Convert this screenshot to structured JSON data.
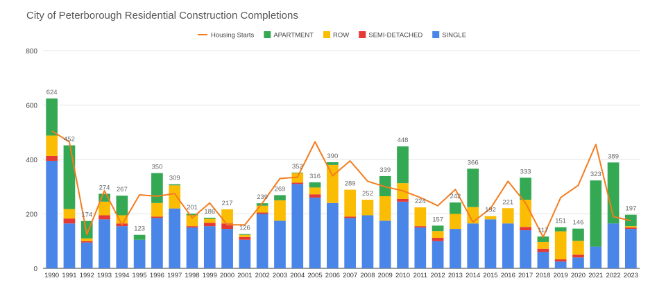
{
  "chart_data": {
    "type": "bar",
    "title": "City of Peterborough Residential Construction Completions",
    "categories": [
      "1990",
      "1991",
      "1992",
      "1993",
      "1994",
      "1995",
      "1996",
      "1997",
      "1998",
      "1999",
      "2000",
      "2001",
      "2002",
      "2003",
      "2004",
      "2005",
      "2006",
      "2007",
      "2008",
      "2009",
      "2010",
      "2011",
      "2012",
      "2013",
      "2014",
      "2015",
      "2016",
      "2017",
      "2018",
      "2019",
      "2020",
      "2021",
      "2022",
      "2023"
    ],
    "stacked": true,
    "ylim": [
      0,
      800
    ],
    "yticks": [
      "0",
      "200",
      "400",
      "600",
      "800"
    ],
    "grid": true,
    "legend_position": "top",
    "totals": [
      "624",
      "452",
      "174",
      "274",
      "267",
      "123",
      "350",
      "309",
      "201",
      "186",
      "217",
      "126",
      "239",
      "269",
      "352",
      "316",
      "390",
      "289",
      "252",
      "339",
      "448",
      "224",
      "157",
      "242",
      "366",
      "192",
      "221",
      "333",
      "117",
      "151",
      "146",
      "323",
      "389",
      "197"
    ],
    "series": [
      {
        "name": "SINGLE",
        "color": "#4a86e8",
        "values": [
          395,
          165,
          95,
          180,
          155,
          105,
          185,
          220,
          150,
          155,
          145,
          105,
          200,
          175,
          310,
          260,
          240,
          185,
          195,
          175,
          245,
          150,
          100,
          145,
          165,
          180,
          165,
          140,
          60,
          25,
          40,
          80,
          165,
          145
        ]
      },
      {
        "name": "SEMI-DETACHED",
        "color": "#e53935",
        "values": [
          18,
          18,
          5,
          15,
          10,
          0,
          5,
          0,
          5,
          12,
          20,
          10,
          5,
          0,
          5,
          12,
          0,
          5,
          0,
          0,
          10,
          5,
          12,
          0,
          0,
          0,
          0,
          12,
          12,
          8,
          10,
          0,
          0,
          5
        ]
      },
      {
        "name": "ROW",
        "color": "#fbbc04",
        "values": [
          75,
          35,
          10,
          50,
          30,
          0,
          50,
          85,
          40,
          15,
          52,
          8,
          25,
          75,
          35,
          25,
          140,
          99,
          57,
          90,
          58,
          69,
          25,
          55,
          60,
          12,
          56,
          100,
          25,
          103,
          51,
          0,
          0,
          5
        ]
      },
      {
        "name": "APARTMENT",
        "color": "#34a853",
        "values": [
          136,
          234,
          64,
          29,
          72,
          18,
          110,
          4,
          6,
          4,
          0,
          3,
          9,
          19,
          2,
          19,
          10,
          0,
          0,
          74,
          135,
          0,
          20,
          42,
          141,
          0,
          0,
          81,
          20,
          15,
          45,
          243,
          224,
          42
        ]
      }
    ],
    "line": {
      "name": "Housing Starts",
      "color": "#f57c1f",
      "values": [
        505,
        465,
        125,
        285,
        160,
        270,
        265,
        275,
        185,
        240,
        160,
        160,
        240,
        330,
        335,
        465,
        340,
        395,
        320,
        300,
        285,
        260,
        230,
        290,
        170,
        220,
        320,
        240,
        115,
        260,
        305,
        455,
        190,
        175
      ]
    }
  }
}
